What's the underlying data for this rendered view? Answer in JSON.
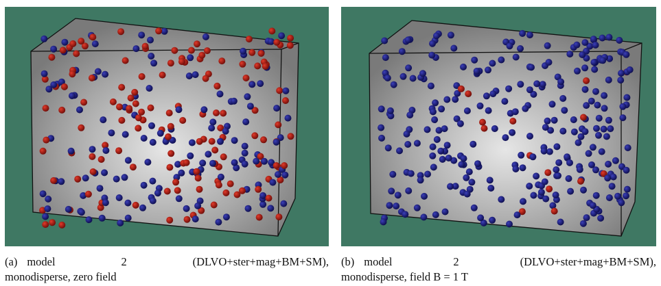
{
  "panels": [
    {
      "label": "(a)",
      "caption_lines": [
        "model 2 (DLVO+ster+mag+BM+SM),",
        "monodisperse, zero field"
      ]
    },
    {
      "label": "(b)",
      "caption_lines": [
        "model 2 (DLVO+ster+mag+BM+SM),",
        "monodisperse, field B = 1 T"
      ]
    }
  ]
}
